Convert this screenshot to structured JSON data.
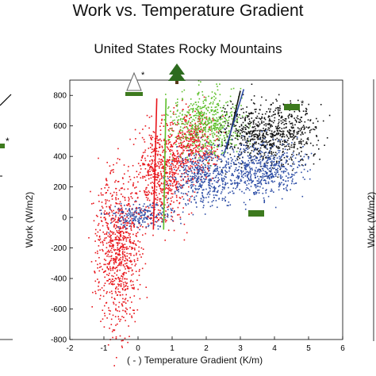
{
  "figure": {
    "main_title": "Work vs. Temperature Gradient",
    "subtitle": "United States Rocky Mountains",
    "left_partial_marker": "*"
  },
  "chart_data": {
    "type": "scatter",
    "title": "United States Rocky Mountains",
    "xlabel": "( - ) Temperature Gradient (K/m)",
    "ylabel": "Work (W/m2)",
    "xlim": [
      -2,
      6
    ],
    "ylim": [
      -800,
      900
    ],
    "xticks": [
      -2,
      -1,
      0,
      1,
      2,
      3,
      4,
      5,
      6
    ],
    "yticks": [
      -800,
      -600,
      -400,
      -200,
      0,
      200,
      400,
      600,
      800
    ],
    "grid": false,
    "colors": {
      "red": "#e8141a",
      "green": "#5cbf2a",
      "black": "#111111",
      "blue": "#2e4ea6"
    },
    "series": [
      {
        "color": "red",
        "icon": "bare-tree-icon",
        "marker_star": "*",
        "cloud_regions": [
          {
            "x": [
              -1.2,
              0.0
            ],
            "y": [
              -700,
              280
            ]
          },
          {
            "x": [
              0.0,
              1.4
            ],
            "y": [
              -20,
              600
            ]
          },
          {
            "x": [
              0.9,
              2.3
            ],
            "y": [
              250,
              700
            ]
          }
        ],
        "fit_line": {
          "x": [
            0.45,
            0.55
          ],
          "y": [
            -80,
            780
          ]
        }
      },
      {
        "color": "green",
        "icon": "evergreen-tree-icon",
        "cloud_regions": [
          {
            "x": [
              1.0,
              3.0
            ],
            "y": [
              420,
              820
            ]
          }
        ],
        "fit_line": {
          "x": [
            0.75,
            0.82
          ],
          "y": [
            -80,
            780
          ]
        }
      },
      {
        "color": "black",
        "icon": "grass-patch-icon",
        "marker_star": "*",
        "cloud_regions": [
          {
            "x": [
              2.5,
              5.3
            ],
            "y": [
              350,
              750
            ]
          }
        ],
        "fit_line": {
          "x": [
            2.6,
            3.0
          ],
          "y": [
            450,
            830
          ]
        }
      },
      {
        "color": "blue",
        "icon": "grass-patch-icon",
        "cloud_regions": [
          {
            "x": [
              -0.9,
              1.0
            ],
            "y": [
              -60,
              100
            ]
          },
          {
            "x": [
              1.0,
              2.8
            ],
            "y": [
              80,
              450
            ]
          },
          {
            "x": [
              2.5,
              4.8
            ],
            "y": [
              150,
              500
            ]
          }
        ],
        "fit_line": {
          "x": [
            2.5,
            3.1
          ],
          "y": [
            400,
            840
          ]
        }
      }
    ]
  }
}
